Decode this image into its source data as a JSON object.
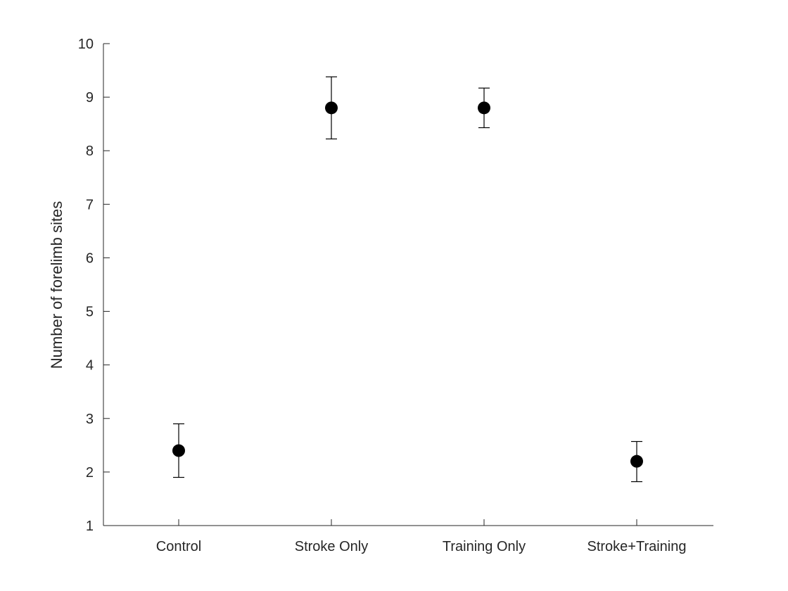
{
  "chart_data": {
    "type": "scatter",
    "title": "",
    "xlabel": "",
    "ylabel": "Number of forelimb sites",
    "categories": [
      "Control",
      "Stroke Only",
      "Training Only",
      "Stroke+Training"
    ],
    "series": [
      {
        "values": [
          2.4,
          8.8,
          8.8,
          2.2
        ],
        "error_low": [
          1.9,
          8.22,
          8.43,
          1.82
        ],
        "error_high": [
          2.9,
          9.38,
          9.17,
          2.57
        ]
      }
    ],
    "ylim": [
      1,
      10
    ],
    "yticks": [
      1,
      2,
      3,
      4,
      5,
      6,
      7,
      8,
      9,
      10
    ],
    "grid": false,
    "marker_color": "#000000"
  }
}
